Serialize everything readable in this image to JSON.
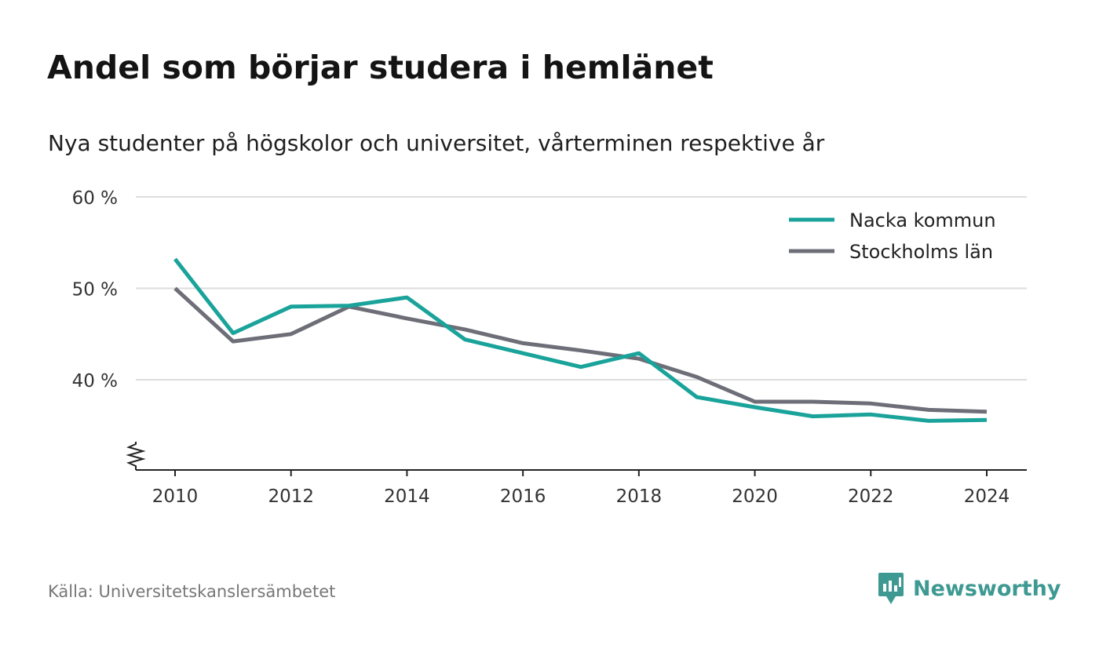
{
  "title": "Andel som börjar studera i hemlänet",
  "subtitle": "Nya studenter på högskolor och universitet, vårterminen respektive år",
  "source": "Källa: Universitetskanslersämbetet",
  "brand": {
    "name": "Newsworthy",
    "color": "#3d9991",
    "icon": "chart-bubble-icon"
  },
  "colors": {
    "grid": "#dddddd",
    "axis": "#222222",
    "tick_text": "#333333"
  },
  "chart_data": {
    "type": "line",
    "title": "Andel som börjar studera i hemlänet",
    "subtitle": "Nya studenter på högskolor och universitet, vårterminen respektive år",
    "x": [
      2010,
      2011,
      2012,
      2013,
      2014,
      2015,
      2016,
      2017,
      2018,
      2019,
      2020,
      2021,
      2022,
      2023,
      2024
    ],
    "xticks": [
      2010,
      2012,
      2014,
      2016,
      2018,
      2020,
      2022,
      2024
    ],
    "xtick_labels": [
      "2010",
      "2012",
      "2014",
      "2016",
      "2018",
      "2020",
      "2022",
      "2024"
    ],
    "yticks": [
      40,
      50,
      60
    ],
    "ytick_labels": [
      "40 %",
      "50 %",
      "60 %"
    ],
    "ylim": [
      30,
      60
    ],
    "y_axis_break": true,
    "grid": true,
    "legend_position": "top-right",
    "series": [
      {
        "name": "Nacka kommun",
        "color": "#1aa39a",
        "values": [
          53.2,
          45.1,
          48.0,
          48.1,
          49.0,
          44.4,
          42.9,
          41.4,
          42.9,
          38.1,
          37.0,
          36.0,
          36.2,
          35.5,
          35.6
        ]
      },
      {
        "name": "Stockholms län",
        "color": "#6e6e78",
        "values": [
          50.0,
          44.2,
          45.0,
          48.0,
          46.7,
          45.5,
          44.0,
          43.2,
          42.3,
          40.3,
          37.6,
          37.6,
          37.4,
          36.7,
          36.5
        ]
      }
    ]
  }
}
